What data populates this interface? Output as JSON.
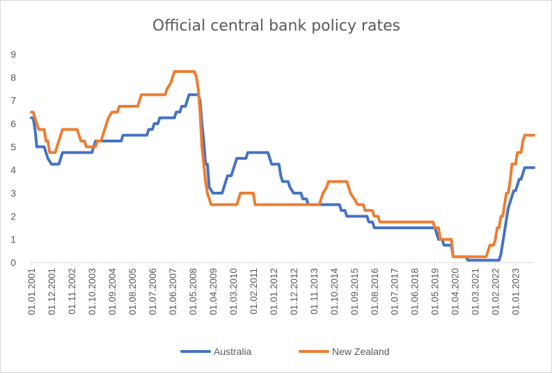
{
  "chart_data": {
    "type": "line",
    "title": "Official central bank policy rates",
    "xlabel": "",
    "ylabel": "",
    "ylim": [
      0,
      9
    ],
    "yticks": [
      "0",
      "1",
      "2",
      "3",
      "4",
      "5",
      "6",
      "7",
      "8",
      "9"
    ],
    "xlim": [
      "2001-01-01",
      "2023-11-01"
    ],
    "xtick_labels": [
      "01.01.2001",
      "01.12.2001",
      "01.11.2002",
      "01.10.2003",
      "01.09.2004",
      "01.08.2005",
      "01.07.2006",
      "01.06.2007",
      "01.05.2008",
      "01.04.2009",
      "01.03.2010",
      "01.02.2011",
      "01.01.2012",
      "01.12.2012",
      "01.11.2013",
      "01.10.2014",
      "01.09.2015",
      "01.08.2016",
      "01.07.2017",
      "01.06.2018",
      "01.05.2019",
      "01.04.2020",
      "01.03.2021",
      "01.02.2022",
      "01.01.2023"
    ],
    "grid": false,
    "legend_position": "bottom",
    "series": [
      {
        "name": "Australia",
        "color": "#4472c4",
        "points": [
          [
            "2001-01",
            6.25
          ],
          [
            "2001-02",
            6.25
          ],
          [
            "2001-03",
            5.75
          ],
          [
            "2001-04",
            5.0
          ],
          [
            "2001-08",
            5.0
          ],
          [
            "2001-09",
            4.75
          ],
          [
            "2001-10",
            4.5
          ],
          [
            "2001-12",
            4.25
          ],
          [
            "2002-04",
            4.25
          ],
          [
            "2002-05",
            4.5
          ],
          [
            "2002-06",
            4.75
          ],
          [
            "2003-10",
            4.75
          ],
          [
            "2003-11",
            5.0
          ],
          [
            "2003-12",
            5.25
          ],
          [
            "2005-02",
            5.25
          ],
          [
            "2005-03",
            5.5
          ],
          [
            "2006-04",
            5.5
          ],
          [
            "2006-05",
            5.75
          ],
          [
            "2006-07",
            5.75
          ],
          [
            "2006-08",
            6.0
          ],
          [
            "2006-10",
            6.0
          ],
          [
            "2006-11",
            6.25
          ],
          [
            "2007-07",
            6.25
          ],
          [
            "2007-08",
            6.5
          ],
          [
            "2007-10",
            6.5
          ],
          [
            "2007-11",
            6.75
          ],
          [
            "2008-01",
            6.75
          ],
          [
            "2008-02",
            7.0
          ],
          [
            "2008-03",
            7.25
          ],
          [
            "2008-08",
            7.25
          ],
          [
            "2008-09",
            7.0
          ],
          [
            "2008-10",
            6.0
          ],
          [
            "2008-11",
            5.25
          ],
          [
            "2008-12",
            4.25
          ],
          [
            "2009-01",
            4.25
          ],
          [
            "2009-02",
            3.25
          ],
          [
            "2009-04",
            3.0
          ],
          [
            "2009-09",
            3.0
          ],
          [
            "2009-10",
            3.25
          ],
          [
            "2009-11",
            3.5
          ],
          [
            "2009-12",
            3.75
          ],
          [
            "2010-02",
            3.75
          ],
          [
            "2010-03",
            4.0
          ],
          [
            "2010-04",
            4.25
          ],
          [
            "2010-05",
            4.5
          ],
          [
            "2010-10",
            4.5
          ],
          [
            "2010-11",
            4.75
          ],
          [
            "2011-10",
            4.75
          ],
          [
            "2011-11",
            4.5
          ],
          [
            "2011-12",
            4.25
          ],
          [
            "2012-04",
            4.25
          ],
          [
            "2012-05",
            3.75
          ],
          [
            "2012-06",
            3.5
          ],
          [
            "2012-09",
            3.5
          ],
          [
            "2012-10",
            3.25
          ],
          [
            "2012-12",
            3.0
          ],
          [
            "2013-04",
            3.0
          ],
          [
            "2013-05",
            2.75
          ],
          [
            "2013-07",
            2.75
          ],
          [
            "2013-08",
            2.5
          ],
          [
            "2015-01",
            2.5
          ],
          [
            "2015-02",
            2.25
          ],
          [
            "2015-04",
            2.25
          ],
          [
            "2015-05",
            2.0
          ],
          [
            "2016-04",
            2.0
          ],
          [
            "2016-05",
            1.75
          ],
          [
            "2016-07",
            1.75
          ],
          [
            "2016-08",
            1.5
          ],
          [
            "2019-05",
            1.5
          ],
          [
            "2019-06",
            1.25
          ],
          [
            "2019-07",
            1.0
          ],
          [
            "2019-09",
            1.0
          ],
          [
            "2019-10",
            0.75
          ],
          [
            "2020-02",
            0.75
          ],
          [
            "2020-03",
            0.25
          ],
          [
            "2020-10",
            0.25
          ],
          [
            "2020-11",
            0.1
          ],
          [
            "2022-04",
            0.1
          ],
          [
            "2022-05",
            0.35
          ],
          [
            "2022-06",
            0.85
          ],
          [
            "2022-07",
            1.35
          ],
          [
            "2022-08",
            1.85
          ],
          [
            "2022-09",
            2.35
          ],
          [
            "2022-10",
            2.6
          ],
          [
            "2022-11",
            2.85
          ],
          [
            "2022-12",
            3.1
          ],
          [
            "2023-01",
            3.1
          ],
          [
            "2023-02",
            3.35
          ],
          [
            "2023-03",
            3.6
          ],
          [
            "2023-04",
            3.6
          ],
          [
            "2023-05",
            3.85
          ],
          [
            "2023-06",
            4.1
          ],
          [
            "2023-11",
            4.1
          ]
        ]
      },
      {
        "name": "New Zealand",
        "color": "#ed7d31",
        "points": [
          [
            "2001-01",
            6.5
          ],
          [
            "2001-02",
            6.5
          ],
          [
            "2001-03",
            6.25
          ],
          [
            "2001-04",
            6.0
          ],
          [
            "2001-05",
            5.75
          ],
          [
            "2001-08",
            5.75
          ],
          [
            "2001-09",
            5.25
          ],
          [
            "2001-10",
            5.25
          ],
          [
            "2001-11",
            4.75
          ],
          [
            "2002-02",
            4.75
          ],
          [
            "2002-03",
            5.0
          ],
          [
            "2002-04",
            5.25
          ],
          [
            "2002-05",
            5.5
          ],
          [
            "2002-06",
            5.75
          ],
          [
            "2003-02",
            5.75
          ],
          [
            "2003-03",
            5.5
          ],
          [
            "2003-04",
            5.25
          ],
          [
            "2003-06",
            5.25
          ],
          [
            "2003-07",
            5.0
          ],
          [
            "2003-12",
            5.0
          ],
          [
            "2004-01",
            5.25
          ],
          [
            "2004-03",
            5.25
          ],
          [
            "2004-04",
            5.5
          ],
          [
            "2004-05",
            5.75
          ],
          [
            "2004-06",
            6.0
          ],
          [
            "2004-07",
            6.25
          ],
          [
            "2004-09",
            6.5
          ],
          [
            "2004-12",
            6.5
          ],
          [
            "2005-01",
            6.75
          ],
          [
            "2005-11",
            6.75
          ],
          [
            "2005-12",
            7.0
          ],
          [
            "2006-01",
            7.25
          ],
          [
            "2007-02",
            7.25
          ],
          [
            "2007-03",
            7.5
          ],
          [
            "2007-05",
            7.75
          ],
          [
            "2007-06",
            8.0
          ],
          [
            "2007-07",
            8.25
          ],
          [
            "2008-06",
            8.25
          ],
          [
            "2008-07",
            8.0
          ],
          [
            "2008-08",
            7.5
          ],
          [
            "2008-09",
            6.5
          ],
          [
            "2008-10",
            5.0
          ],
          [
            "2008-12",
            3.5
          ],
          [
            "2009-01",
            3.0
          ],
          [
            "2009-03",
            2.5
          ],
          [
            "2010-05",
            2.5
          ],
          [
            "2010-06",
            2.75
          ],
          [
            "2010-07",
            3.0
          ],
          [
            "2011-02",
            3.0
          ],
          [
            "2011-03",
            2.5
          ],
          [
            "2014-02",
            2.5
          ],
          [
            "2014-03",
            2.75
          ],
          [
            "2014-04",
            3.0
          ],
          [
            "2014-06",
            3.25
          ],
          [
            "2014-07",
            3.5
          ],
          [
            "2015-05",
            3.5
          ],
          [
            "2015-06",
            3.25
          ],
          [
            "2015-07",
            3.0
          ],
          [
            "2015-09",
            2.75
          ],
          [
            "2015-11",
            2.5
          ],
          [
            "2016-02",
            2.5
          ],
          [
            "2016-03",
            2.25
          ],
          [
            "2016-07",
            2.25
          ],
          [
            "2016-08",
            2.0
          ],
          [
            "2016-10",
            2.0
          ],
          [
            "2016-11",
            1.75
          ],
          [
            "2019-04",
            1.75
          ],
          [
            "2019-05",
            1.5
          ],
          [
            "2019-07",
            1.5
          ],
          [
            "2019-08",
            1.0
          ],
          [
            "2020-02",
            1.0
          ],
          [
            "2020-03",
            0.25
          ],
          [
            "2021-09",
            0.25
          ],
          [
            "2021-10",
            0.5
          ],
          [
            "2021-11",
            0.75
          ],
          [
            "2022-01",
            0.75
          ],
          [
            "2022-02",
            1.0
          ],
          [
            "2022-03",
            1.5
          ],
          [
            "2022-04",
            1.5
          ],
          [
            "2022-05",
            2.0
          ],
          [
            "2022-06",
            2.0
          ],
          [
            "2022-07",
            2.5
          ],
          [
            "2022-08",
            3.0
          ],
          [
            "2022-09",
            3.0
          ],
          [
            "2022-10",
            3.5
          ],
          [
            "2022-11",
            4.25
          ],
          [
            "2022-12",
            4.25
          ],
          [
            "2023-01",
            4.25
          ],
          [
            "2023-02",
            4.75
          ],
          [
            "2023-04",
            4.75
          ],
          [
            "2023-05",
            5.25
          ],
          [
            "2023-06",
            5.5
          ],
          [
            "2023-11",
            5.5
          ]
        ]
      }
    ]
  }
}
